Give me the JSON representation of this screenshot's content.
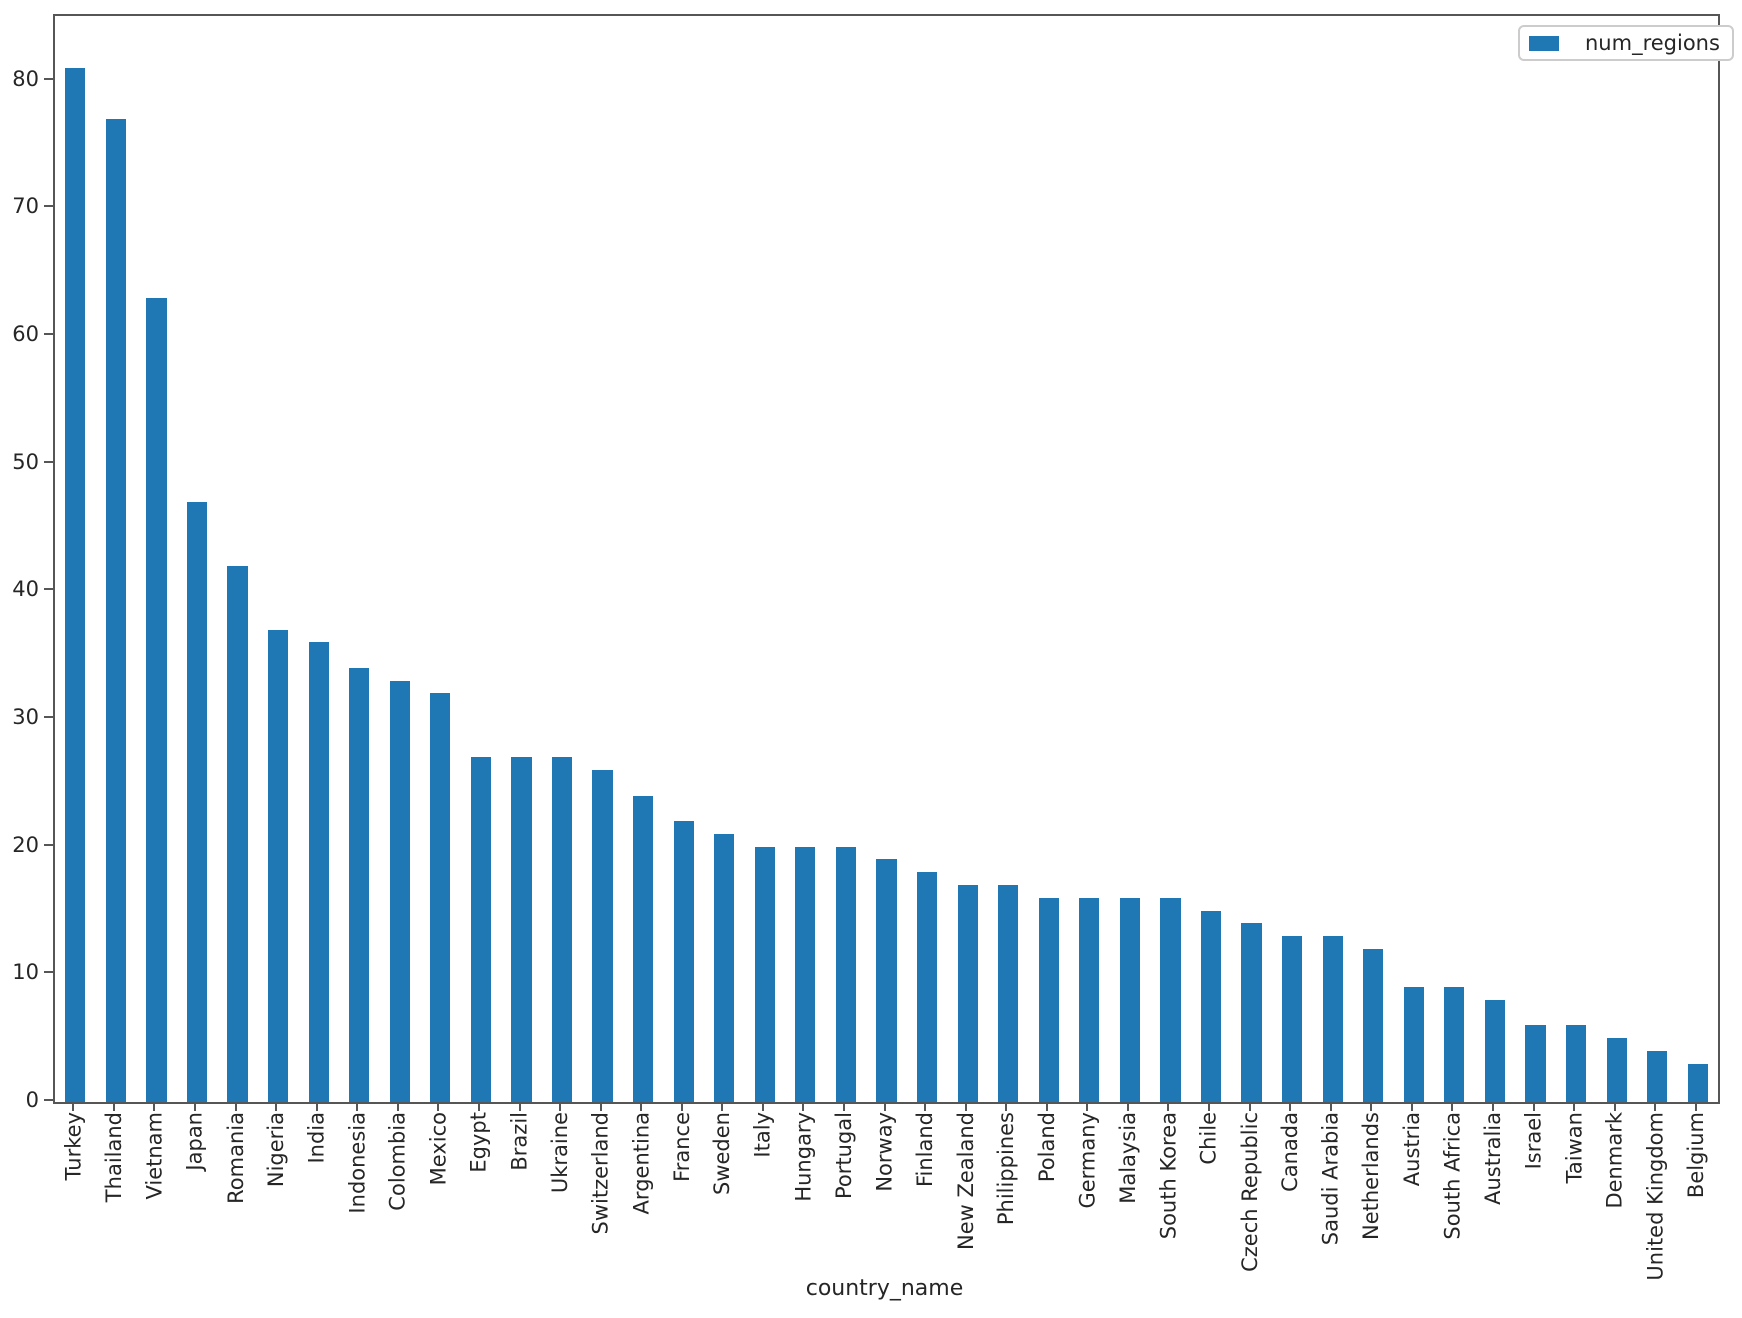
{
  "chart_data": {
    "type": "bar",
    "title": "",
    "xlabel": "country_name",
    "ylabel": "",
    "legend_label": "num_regions",
    "legend_position": "upper right",
    "grid": false,
    "bar_color": "#1f77b4",
    "spine_color": "#565656",
    "text_color": "#262626",
    "ylim": [
      0,
      85.05
    ],
    "yticks": [
      0,
      10,
      20,
      30,
      40,
      50,
      60,
      70,
      80
    ],
    "categories": [
      "Turkey",
      "Thailand",
      "Vietnam",
      "Japan",
      "Romania",
      "Nigeria",
      "India",
      "Indonesia",
      "Colombia",
      "Mexico",
      "Egypt",
      "Brazil",
      "Ukraine",
      "Switzerland",
      "Argentina",
      "France",
      "Sweden",
      "Italy",
      "Hungary",
      "Portugal",
      "Norway",
      "Finland",
      "New Zealand",
      "Philippines",
      "Poland",
      "Germany",
      "Malaysia",
      "South Korea",
      "Chile",
      "Czech Republic",
      "Canada",
      "Saudi Arabia",
      "Netherlands",
      "Austria",
      "South Africa",
      "Australia",
      "Israel",
      "Taiwan",
      "Denmark",
      "United Kingdom",
      "Belgium"
    ],
    "values": [
      81,
      77,
      63,
      47,
      42,
      37,
      36,
      34,
      33,
      32,
      27,
      27,
      27,
      26,
      24,
      22,
      21,
      20,
      20,
      20,
      19,
      18,
      17,
      17,
      16,
      16,
      16,
      16,
      15,
      14,
      13,
      13,
      12,
      9,
      9,
      8,
      6,
      6,
      5,
      4,
      3
    ]
  }
}
